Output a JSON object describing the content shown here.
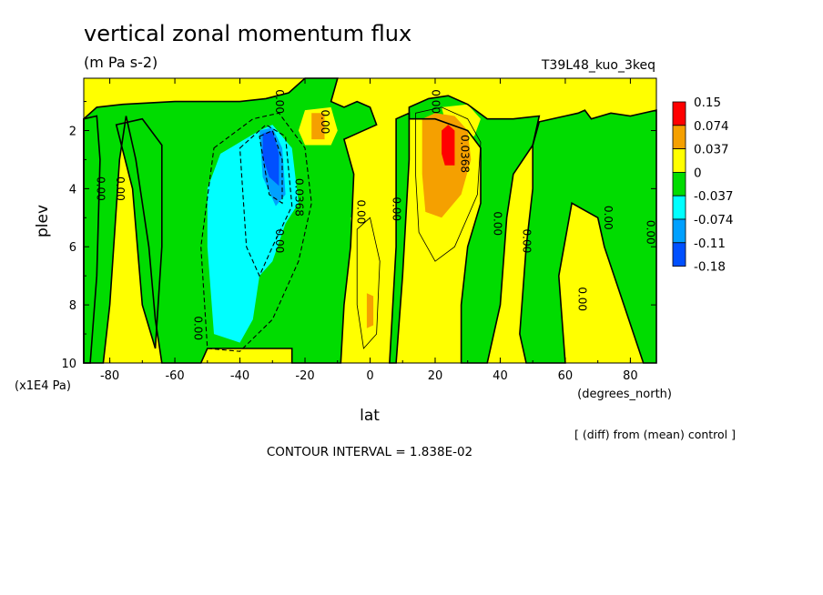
{
  "chart_data": {
    "type": "heatmap",
    "title": "vertical zonal momentum flux",
    "subtitle": "(m Pa s-2)",
    "run_label": "T39L48_kuo_3keq",
    "xlabel": "lat",
    "x_units": "(degrees_north)",
    "ylabel": "plev",
    "y_units": "(x1E4 Pa)",
    "xlim": [
      -88,
      88
    ],
    "ylim": [
      10,
      0.2
    ],
    "x_ticks": [
      -80,
      -60,
      -40,
      -20,
      0,
      20,
      40,
      60,
      80
    ],
    "y_ticks": [
      2,
      4,
      6,
      8,
      10
    ],
    "grid": false,
    "legend_position": "right",
    "legend": {
      "levels": [
        "0.15",
        "0.074",
        "0.037",
        "0",
        "-0.037",
        "-0.074",
        "-0.11",
        "-0.18"
      ],
      "colors": [
        "#ff0000",
        "#f5a000",
        "#ffff00",
        "#00dc00",
        "#00ffff",
        "#00a0ff",
        "#0050ff"
      ]
    },
    "contour_labels": [
      {
        "text": "0.00",
        "lat": -28,
        "plev": 1.0
      },
      {
        "text": "0.00",
        "lat": -14,
        "plev": 1.7
      },
      {
        "text": "0.00",
        "lat": 20,
        "plev": 1.0
      },
      {
        "text": "0.0368",
        "lat": 29,
        "plev": 2.8
      },
      {
        "text": "0.00",
        "lat": -83,
        "plev": 4.0
      },
      {
        "text": "0.00",
        "lat": -77,
        "plev": 4.0
      },
      {
        "text": "0.0368",
        "lat": -22,
        "plev": 4.3
      },
      {
        "text": "0.00",
        "lat": -3,
        "plev": 4.8
      },
      {
        "text": "0.00",
        "lat": 8,
        "plev": 4.7
      },
      {
        "text": "0.00",
        "lat": 39,
        "plev": 5.2
      },
      {
        "text": "0.00",
        "lat": 73,
        "plev": 5.0
      },
      {
        "text": "0.00",
        "lat": 86,
        "plev": 5.5
      },
      {
        "text": "0.00",
        "lat": -28,
        "plev": 5.8
      },
      {
        "text": "0.00",
        "lat": 48,
        "plev": 5.8
      },
      {
        "text": "0.00",
        "lat": 65,
        "plev": 7.8
      },
      {
        "text": "0.00",
        "lat": -53,
        "plev": 8.8
      }
    ],
    "features": [
      {
        "lat": [
          -34,
          -28
        ],
        "plev": [
          2.0,
          4.5
        ],
        "value": -0.11,
        "note": "strongest negative core"
      },
      {
        "lat": [
          -50,
          -20
        ],
        "plev": [
          2.0,
          9.5
        ],
        "value": -0.074
      },
      {
        "lat": [
          23,
          26
        ],
        "plev": [
          1.8,
          3.2
        ],
        "value": 0.1,
        "note": "strongest positive core"
      },
      {
        "lat": [
          16,
          33
        ],
        "plev": [
          1.5,
          5.0
        ],
        "value": 0.05
      },
      {
        "lat": [
          -20,
          -14
        ],
        "plev": [
          1.3,
          2.3
        ],
        "value": 0.05
      },
      {
        "lat": [
          -1,
          1
        ],
        "plev": [
          7.5,
          8.8
        ],
        "value": 0.05
      }
    ]
  },
  "notes": {
    "diff_label": "[ (diff) from (mean) control ]",
    "contour_interval": "CONTOUR INTERVAL = 1.838E-02"
  }
}
